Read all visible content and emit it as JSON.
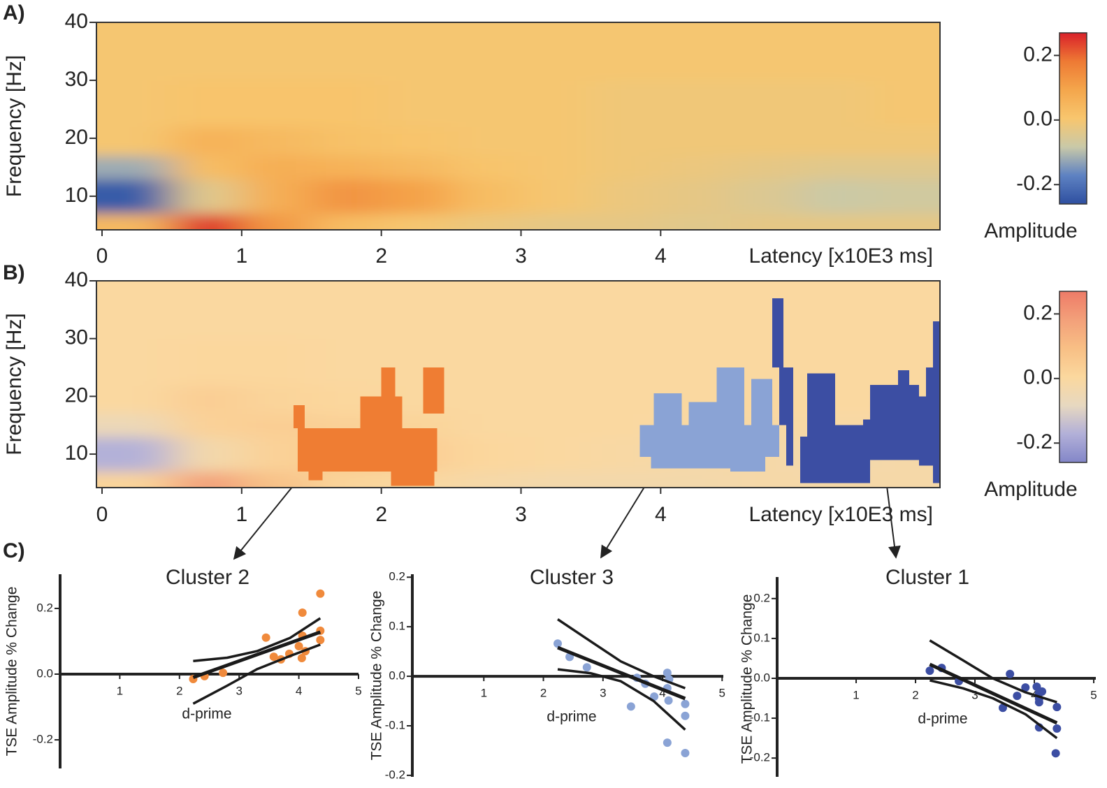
{
  "chart_data": [
    {
      "type": "heatmap",
      "panel": "A)",
      "xlabel": "Latency [x10E3 ms]",
      "ylabel": "Frequency [Hz]",
      "xlim": [
        -0.04,
        6.0
      ],
      "ylim": [
        4.2,
        40
      ],
      "xticks": [
        0,
        1,
        2,
        3,
        4
      ],
      "yticks": [
        10,
        20,
        30,
        40
      ],
      "x_bins": [
        -0.04,
        0.5,
        1,
        1.5,
        2,
        2.5,
        3,
        3.5,
        4,
        4.5,
        5,
        5.5,
        6.0
      ],
      "y_bins": [
        4.2,
        7,
        13,
        17,
        22,
        30,
        40
      ],
      "z": [
        [
          0.04,
          0.25,
          0.12,
          0.03,
          0.0,
          -0.02,
          -0.03,
          -0.03,
          -0.04,
          -0.03,
          -0.03,
          -0.03
        ],
        [
          -0.24,
          -0.04,
          0.07,
          0.13,
          0.1,
          0.03,
          0,
          -0.02,
          -0.03,
          -0.05,
          -0.08,
          -0.07
        ],
        [
          -0.12,
          0.03,
          0.07,
          0.06,
          0.04,
          0.01,
          0,
          -0.01,
          -0.02,
          -0.03,
          -0.04,
          -0.04
        ],
        [
          0,
          0.06,
          0.04,
          0.02,
          0.01,
          0,
          0,
          -0.01,
          -0.01,
          -0.01,
          -0.01,
          -0.01
        ],
        [
          0,
          0.01,
          0.01,
          0.01,
          0,
          0,
          0,
          -0.01,
          -0.01,
          -0.01,
          -0.01,
          0
        ],
        [
          0,
          0,
          0,
          0,
          0,
          0,
          0,
          0,
          0,
          0,
          0,
          0
        ]
      ],
      "colorbar": {
        "label": "Amplitude",
        "lim": [
          -0.26,
          0.27
        ],
        "ticks": [
          0.2,
          {
            "value": 0,
            "label": "0.0"
          },
          -0.2
        ],
        "colors": [
          "#2e4fa0",
          "#5e82c2",
          "#c9c9a8",
          "#f8c66e",
          "#f4a64c",
          "#ee7a34",
          "#d9202a"
        ]
      }
    },
    {
      "type": "heatmap",
      "panel": "B)",
      "xlabel": "Latency [x10E3 ms]",
      "ylabel": "Frequency [Hz]",
      "xlim": [
        -0.04,
        6.0
      ],
      "ylim": [
        4.2,
        40
      ],
      "xticks": [
        0,
        1,
        2,
        3,
        4
      ],
      "yticks": [
        10,
        20,
        30,
        40
      ],
      "x_bins": [
        -0.04,
        0.5,
        1,
        1.5,
        2,
        2.5,
        3,
        3.5,
        4,
        4.5,
        5,
        5.5,
        6.0
      ],
      "y_bins": [
        4.2,
        7,
        13,
        17,
        22,
        30,
        40
      ],
      "z": [
        [
          0.02,
          0.18,
          0.08,
          0.02,
          0,
          -0.02,
          -0.03,
          -0.03,
          -0.03,
          -0.02,
          -0.02,
          -0.02
        ],
        [
          -0.17,
          -0.03,
          0.03,
          0.05,
          0.04,
          0.01,
          0,
          -0.01,
          -0.02,
          -0.02,
          -0.03,
          -0.02
        ],
        [
          -0.06,
          0.03,
          0.04,
          0.03,
          0.02,
          0,
          0,
          0,
          -0.01,
          -0.01,
          -0.01,
          -0.01
        ],
        [
          0,
          0.04,
          0.02,
          0.01,
          0,
          0,
          0,
          0,
          0,
          0,
          0,
          0
        ],
        [
          0,
          0.01,
          0.01,
          0,
          0,
          0,
          0,
          0,
          0,
          0,
          0,
          0
        ],
        [
          0,
          0,
          0,
          0,
          0,
          0,
          0,
          0,
          0,
          0,
          0,
          0
        ]
      ],
      "colorbar": {
        "label": "Amplitude",
        "lim": [
          -0.26,
          0.27
        ],
        "ticks": [
          0.2,
          {
            "value": 0,
            "label": "0.0"
          },
          -0.2
        ],
        "colors": [
          "#8386c8",
          "#b2b0d8",
          "#e7d8c0",
          "#fbd89e",
          "#f8bf85",
          "#f3a07a",
          "#ee7b67"
        ]
      },
      "clusters": [
        {
          "color": "#ef7d33",
          "regions": [
            [
              1.4,
              2.4,
              7,
              14.5
            ],
            [
              1.37,
              1.45,
              14.5,
              18.5
            ],
            [
              1.85,
              2.15,
              14.5,
              20
            ],
            [
              2.0,
              2.1,
              20,
              25
            ],
            [
              2.3,
              2.45,
              17,
              25
            ],
            [
              1.48,
              1.58,
              5.5,
              7
            ],
            [
              2.07,
              2.38,
              4.5,
              7
            ]
          ]
        },
        {
          "color": "#8aa3d5",
          "regions": [
            [
              3.85,
              4.85,
              9.5,
              15
            ],
            [
              3.95,
              4.15,
              15,
              20.5
            ],
            [
              4.2,
              4.4,
              15,
              19
            ],
            [
              4.4,
              4.6,
              15,
              25
            ],
            [
              4.65,
              4.8,
              15,
              23
            ],
            [
              3.93,
              4.5,
              7.5,
              9.5
            ],
            [
              4.5,
              4.75,
              7,
              9.5
            ]
          ]
        },
        {
          "color": "#3c4ea3",
          "regions": [
            [
              4.8,
              4.88,
              25,
              37
            ],
            [
              4.85,
              4.95,
              15,
              25
            ],
            [
              4.9,
              4.95,
              8,
              15
            ],
            [
              5.0,
              5.5,
              5,
              13
            ],
            [
              5.05,
              5.25,
              13,
              24
            ],
            [
              5.2,
              5.55,
              9,
              15
            ],
            [
              5.45,
              5.95,
              9,
              16
            ],
            [
              5.5,
              5.85,
              16,
              22
            ],
            [
              5.7,
              5.78,
              22,
              24.5
            ],
            [
              5.95,
              6.0,
              5,
              33
            ],
            [
              5.85,
              6.0,
              8,
              20
            ],
            [
              5.9,
              5.95,
              20,
              25
            ]
          ]
        }
      ]
    },
    {
      "type": "scatter",
      "panel": "C)",
      "title": "Cluster 2",
      "xlabel": "d-prime",
      "ylabel": "TSE Amplitude % Change",
      "xlim": [
        0,
        5
      ],
      "ylim": [
        -0.287,
        0.304
      ],
      "xticks": [
        1,
        2,
        3,
        4,
        5
      ],
      "yticks": [
        0.2,
        {
          "value": 0,
          "label": "0.0"
        },
        -0.2
      ],
      "color": "#f08a3c",
      "line_color": "#1a1a1a",
      "x": [
        2.23,
        2.42,
        2.73,
        3.45,
        3.58,
        3.7,
        3.84,
        4.0,
        4.06,
        4.06,
        4.11,
        4.05,
        4.36,
        4.36,
        4.36
      ],
      "y": [
        -0.015,
        -0.006,
        0.004,
        0.111,
        0.053,
        0.045,
        0.062,
        0.085,
        0.117,
        0.187,
        0.07,
        0.049,
        0.245,
        0.132,
        0.104
      ],
      "lines": [
        {
          "x": [
            2.23,
            4.36
          ],
          "y": [
            -0.01,
            0.128
          ]
        },
        {
          "x": [
            2.23,
            2.8,
            3.3,
            3.85,
            4.36
          ],
          "y": [
            0.04,
            0.05,
            0.07,
            0.11,
            0.17
          ]
        },
        {
          "x": [
            2.23,
            2.8,
            3.3,
            3.85,
            4.36
          ],
          "y": [
            -0.09,
            -0.035,
            0.015,
            0.055,
            0.09
          ]
        }
      ]
    },
    {
      "type": "scatter",
      "title": "Cluster 3",
      "xlabel": "d-prime",
      "ylabel": "TSE Amplitude % Change",
      "xlim": [
        -0.2,
        5.02
      ],
      "ylim": [
        -0.203,
        0.206
      ],
      "xticks": [
        1,
        2,
        3,
        4,
        5
      ],
      "yticks": [
        0.2,
        0.1,
        {
          "value": 0,
          "label": "0.0"
        },
        -0.1,
        -0.2
      ],
      "color": "#8aa3d5",
      "line_color": "#1a1a1a",
      "x": [
        2.24,
        2.44,
        2.73,
        3.57,
        3.71,
        3.86,
        4.08,
        4.11,
        4.08,
        4.1,
        4.38,
        4.38,
        3.47,
        4.08,
        4.38
      ],
      "y": [
        0.066,
        0.039,
        0.018,
        -0.003,
        -0.015,
        -0.041,
        0.007,
        -0.006,
        -0.024,
        -0.049,
        -0.056,
        -0.08,
        -0.061,
        -0.134,
        -0.155
      ],
      "lines": [
        {
          "x": [
            2.24,
            4.38
          ],
          "y": [
            0.058,
            -0.045
          ]
        },
        {
          "x": [
            2.24,
            2.8,
            3.3,
            3.85,
            4.38
          ],
          "y": [
            0.115,
            0.07,
            0.03,
            0.0,
            -0.024
          ]
        },
        {
          "x": [
            2.24,
            2.8,
            3.3,
            3.85,
            4.38
          ],
          "y": [
            0.014,
            0.006,
            -0.01,
            -0.05,
            -0.108
          ]
        }
      ]
    },
    {
      "type": "scatter",
      "title": "Cluster 1",
      "xlabel": "d-prime",
      "ylabel": "TSE Amplitude % Change",
      "xlim": [
        -0.33,
        5.035
      ],
      "ylim": [
        -0.247,
        0.254
      ],
      "xticks": [
        1,
        2,
        3,
        4,
        5
      ],
      "yticks": [
        0.2,
        0.1,
        {
          "value": 0,
          "label": "0.0"
        },
        -0.1,
        -0.2
      ],
      "color": "#3c4ea3",
      "line_color": "#1a1a1a",
      "x": [
        2.24,
        2.44,
        2.73,
        3.47,
        3.59,
        3.71,
        3.85,
        4.04,
        4.08,
        4.08,
        4.13,
        4.08,
        4.08,
        4.38,
        4.38,
        4.36
      ],
      "y": [
        0.019,
        0.026,
        -0.007,
        -0.074,
        0.011,
        -0.044,
        -0.023,
        -0.021,
        -0.037,
        -0.051,
        -0.033,
        -0.06,
        -0.123,
        -0.072,
        -0.126,
        -0.188
      ],
      "lines": [
        {
          "x": [
            2.24,
            4.38
          ],
          "y": [
            0.035,
            -0.112
          ]
        },
        {
          "x": [
            2.24,
            2.8,
            3.3,
            3.85,
            4.38
          ],
          "y": [
            0.095,
            0.045,
            0.0,
            -0.035,
            -0.06
          ]
        },
        {
          "x": [
            2.24,
            2.8,
            3.3,
            3.85,
            4.38
          ],
          "y": [
            -0.005,
            -0.025,
            -0.05,
            -0.09,
            -0.15
          ]
        }
      ]
    }
  ]
}
